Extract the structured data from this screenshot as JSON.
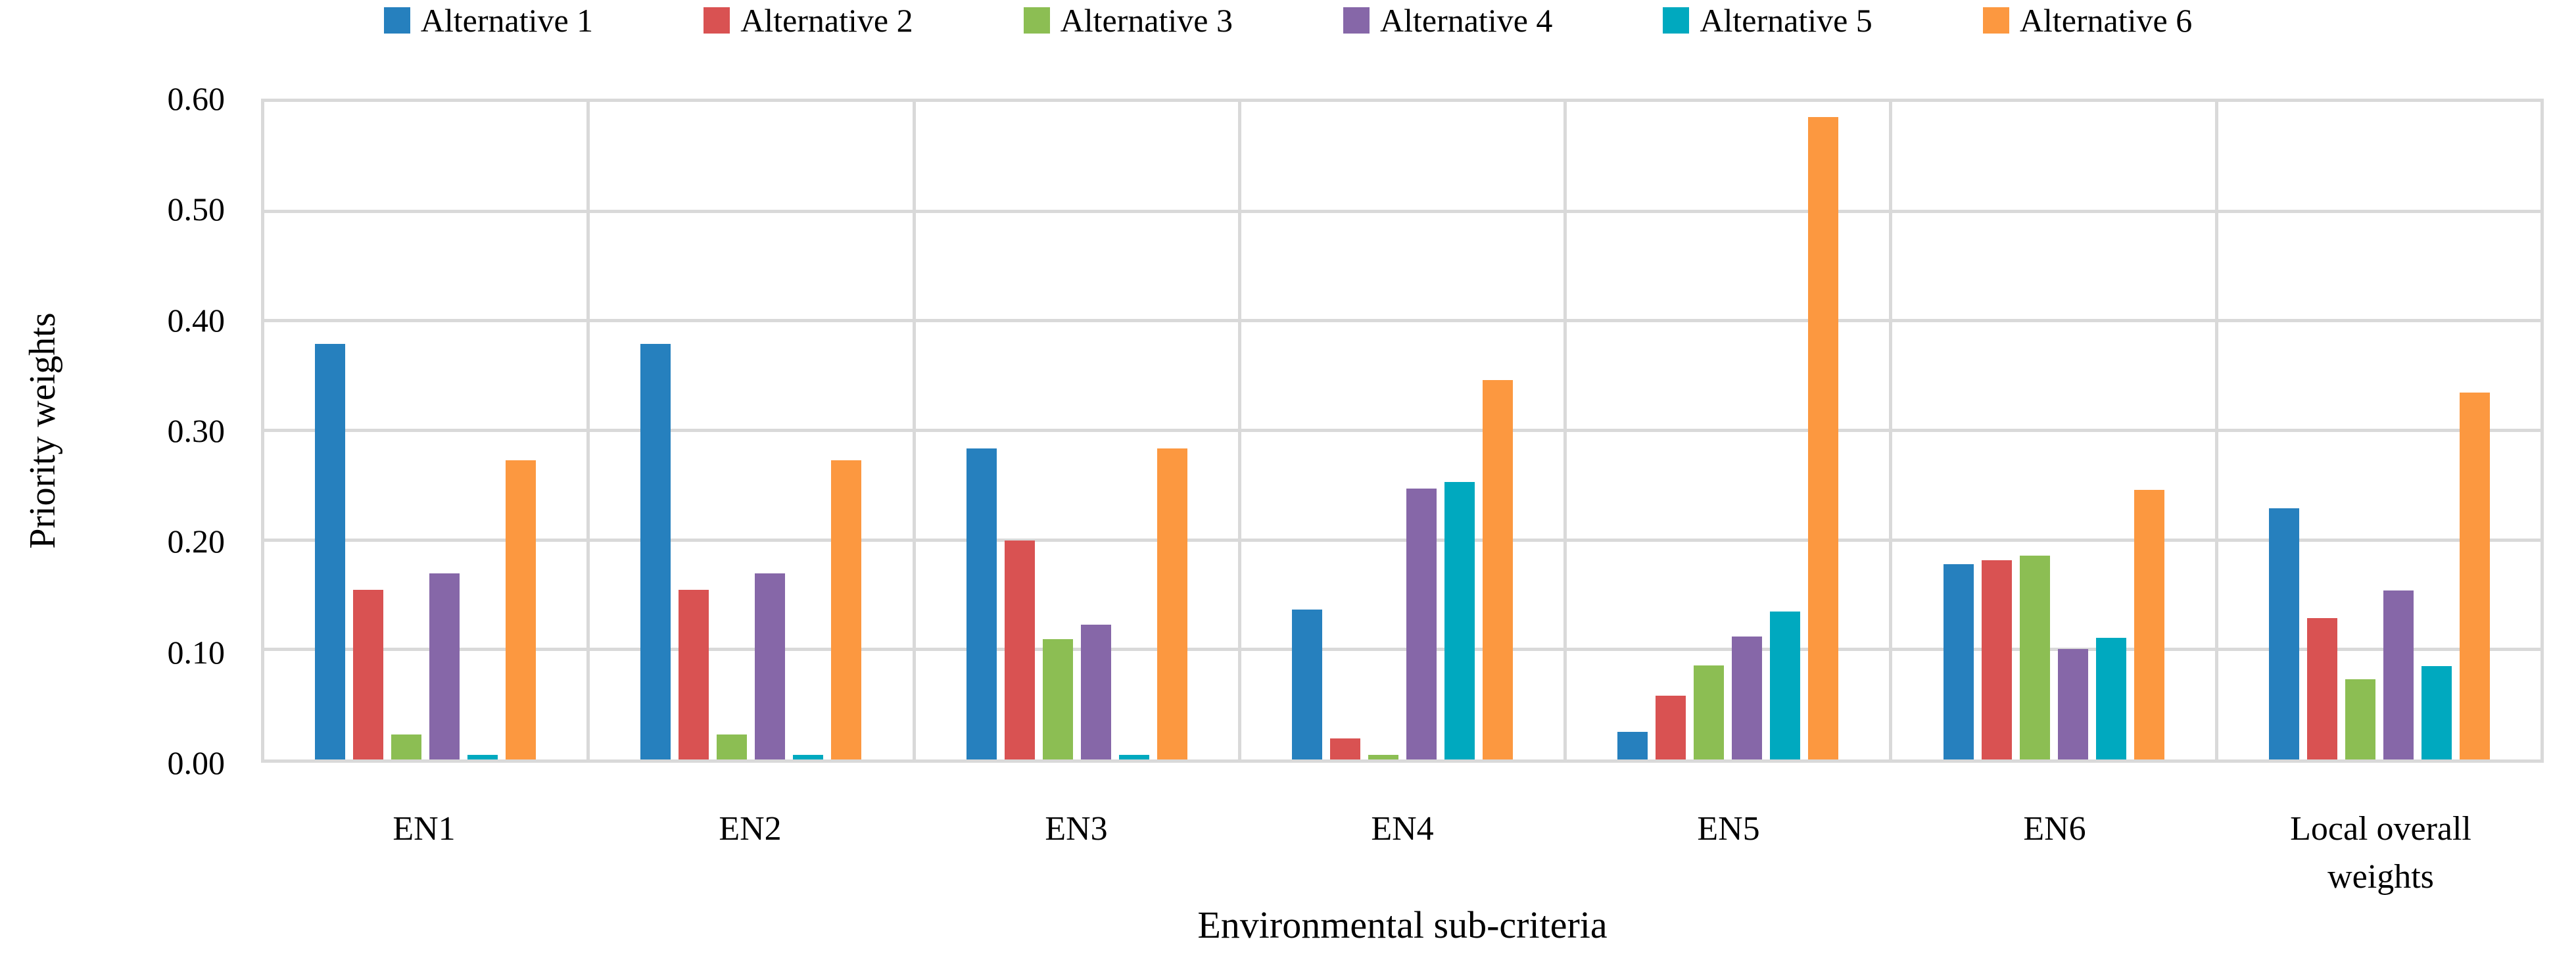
{
  "chart_data": {
    "type": "bar",
    "title": "",
    "xlabel": "Environmental sub-criteria",
    "ylabel": "Priority weights",
    "ylim": [
      0,
      0.6
    ],
    "ytick_step": 0.1,
    "ytick_decimals": 2,
    "grid": true,
    "grid_color": "#D9D9D9",
    "legend_position": "top",
    "categories": [
      "EN1",
      "EN2",
      "EN3",
      "EN4",
      "EN5",
      "EN6",
      "Local overall\nweights"
    ],
    "series": [
      {
        "name": "Alternative 1",
        "color": "#2680BE",
        "values": [
          0.379,
          0.379,
          0.284,
          0.137,
          0.025,
          0.178,
          0.229
        ]
      },
      {
        "name": "Alternative 2",
        "color": "#D95252",
        "values": [
          0.155,
          0.155,
          0.2,
          0.019,
          0.058,
          0.182,
          0.129
        ]
      },
      {
        "name": "Alternative 3",
        "color": "#8CBE53",
        "values": [
          0.023,
          0.023,
          0.11,
          0.004,
          0.086,
          0.186,
          0.073
        ]
      },
      {
        "name": "Alternative 4",
        "color": "#8667A8",
        "values": [
          0.17,
          0.17,
          0.123,
          0.247,
          0.112,
          0.101,
          0.154
        ]
      },
      {
        "name": "Alternative 5",
        "color": "#00A9BF",
        "values": [
          0.004,
          0.004,
          0.004,
          0.253,
          0.135,
          0.111,
          0.085
        ]
      },
      {
        "name": "Alternative 6",
        "color": "#FC9840",
        "values": [
          0.273,
          0.273,
          0.284,
          0.346,
          0.586,
          0.246,
          0.335
        ]
      }
    ]
  }
}
